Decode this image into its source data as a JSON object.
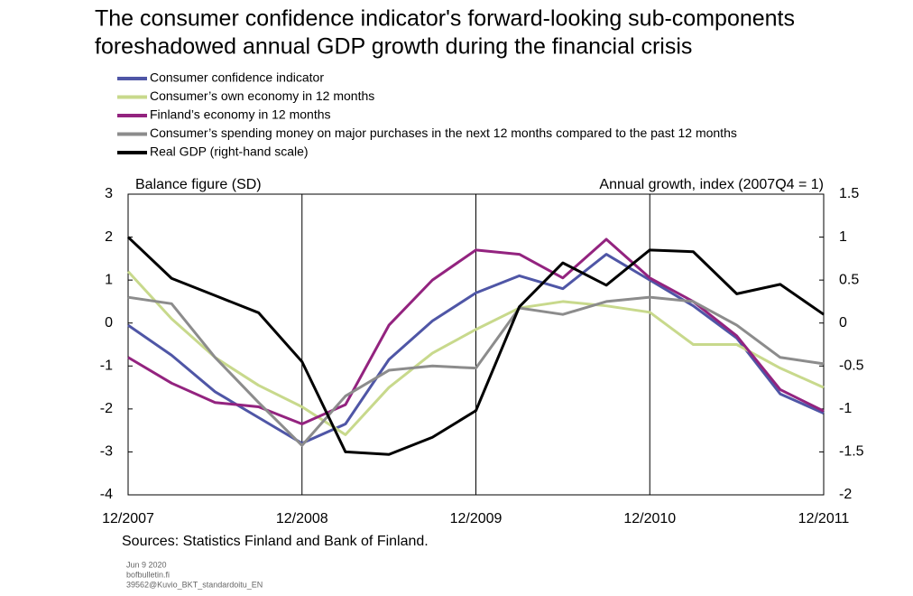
{
  "chart_data": {
    "type": "line",
    "title": [
      "The consumer confidence indicator's forward-looking sub-components",
      "foreshadowed annual GDP growth during the financial crisis"
    ],
    "ylabel": "Balance figure (SD)",
    "y2label": "Annual growth, index (2007Q4 = 1)",
    "categories": [
      "12/2007",
      null,
      null,
      null,
      "12/2008",
      null,
      null,
      null,
      "12/2009",
      null,
      null,
      null,
      "12/2010",
      null,
      null,
      null,
      "12/2011"
    ],
    "ylim": [
      -4,
      3
    ],
    "yticks": [
      -4,
      -3,
      -2,
      -1,
      0,
      1,
      2,
      3
    ],
    "y2lim": [
      -2,
      1.5
    ],
    "y2ticks": [
      -2,
      -1.5,
      -1,
      -0.5,
      0,
      0.5,
      1,
      1.5
    ],
    "series": [
      {
        "name": "Consumer confidence indicator",
        "color": "#4f56a6",
        "values": [
          -0.05,
          -0.75,
          -1.6,
          -2.2,
          -2.8,
          -2.35,
          -0.85,
          0.05,
          0.7,
          1.1,
          0.8,
          1.6,
          1.0,
          0.4,
          -0.35,
          -1.65,
          -2.1
        ]
      },
      {
        "name": "Consumer’s own economy in 12 months",
        "color": "#c8d98c",
        "values": [
          1.2,
          0.1,
          -0.8,
          -1.45,
          -1.95,
          -2.6,
          -1.5,
          -0.7,
          -0.15,
          0.35,
          0.5,
          0.4,
          0.25,
          -0.5,
          -0.5,
          -1.05,
          -1.5
        ]
      },
      {
        "name": "Finland’s economy in 12 months",
        "color": "#93237f",
        "values": [
          -0.8,
          -1.4,
          -1.85,
          -1.95,
          -2.35,
          -1.9,
          -0.05,
          1.0,
          1.7,
          1.6,
          1.05,
          1.95,
          1.05,
          0.5,
          -0.3,
          -1.55,
          -2.05
        ]
      },
      {
        "name": "Consumer’s spending money on major purchases in the next 12 months compared to the past 12 months",
        "color": "#8c8c8c",
        "values": [
          0.6,
          0.45,
          -0.8,
          -1.85,
          -2.85,
          -1.7,
          -1.1,
          -1.0,
          -1.05,
          0.35,
          0.2,
          0.5,
          0.6,
          0.5,
          -0.05,
          -0.8,
          -0.95
        ]
      },
      {
        "name": "Real GDP (right-hand scale)",
        "color": "#000000",
        "axis": "y2",
        "values": [
          1.0,
          0.52,
          0.32,
          0.12,
          -0.45,
          -1.5,
          -1.53,
          -1.33,
          -1.02,
          0.19,
          0.7,
          0.44,
          0.85,
          0.83,
          0.34,
          0.45,
          0.1
        ]
      }
    ],
    "source": "Sources: Statistics Finland and Bank of Finland.",
    "footer": [
      "Jun 9 2020",
      "bofbulletin.fi",
      "39562@Kuvio_BKT_standardoitu_EN"
    ]
  }
}
